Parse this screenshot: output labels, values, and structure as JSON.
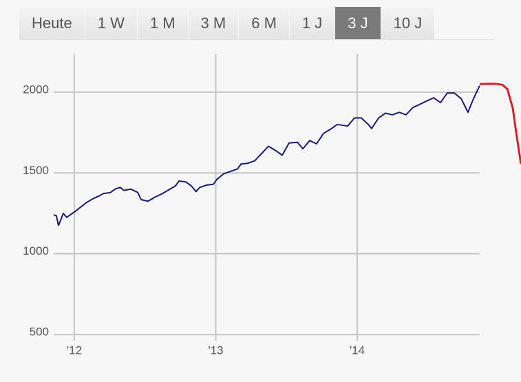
{
  "range_tabs": [
    "Heute",
    "1 W",
    "1 M",
    "3 M",
    "6 M",
    "1 J",
    "3 J",
    "10 J"
  ],
  "selected_tab": 6,
  "chart_data": {
    "type": "line",
    "xlim": [
      2011.854,
      2014.866
    ],
    "ylim": [
      462,
      2238
    ],
    "xticks": [
      {
        "value": 2012,
        "label": "'12"
      },
      {
        "value": 2013,
        "label": "'13"
      },
      {
        "value": 2014,
        "label": "'14"
      }
    ],
    "yticks": [
      500,
      1000,
      1500,
      2000
    ],
    "grid": true,
    "series": [
      {
        "color": "#1a1a78",
        "x": [
          2011.854,
          2011.873,
          2011.888,
          2011.922,
          2011.946,
          2012.01,
          2012.083,
          2012.131,
          2012.18,
          2012.204,
          2012.253,
          2012.292,
          2012.326,
          2012.35,
          2012.399,
          2012.448,
          2012.472,
          2012.521,
          2012.569,
          2012.618,
          2012.667,
          2012.715,
          2012.74,
          2012.788,
          2012.827,
          2012.861,
          2012.886,
          2012.934,
          2012.983,
          2013.007,
          2013.056,
          2013.105,
          2013.153,
          2013.178,
          2013.226,
          2013.275,
          2013.324,
          2013.372,
          2013.421,
          2013.47,
          2013.518,
          2013.577,
          2013.616,
          2013.664,
          2013.713,
          2013.762,
          2013.81,
          2013.859,
          2013.932,
          2013.981,
          2014.029,
          2014.078,
          2014.102,
          2014.151,
          2014.2,
          2014.248,
          2014.297,
          2014.345,
          2014.394,
          2014.443,
          2014.491,
          2014.54,
          2014.589,
          2014.637,
          2014.686,
          2014.735,
          2014.783,
          2014.822,
          2014.866
        ],
        "values": [
          1241,
          1235,
          1175,
          1250,
          1225,
          1265,
          1315,
          1340,
          1360,
          1372,
          1378,
          1402,
          1410,
          1392,
          1400,
          1380,
          1335,
          1325,
          1350,
          1370,
          1395,
          1420,
          1450,
          1445,
          1420,
          1385,
          1410,
          1425,
          1430,
          1460,
          1495,
          1510,
          1525,
          1555,
          1560,
          1575,
          1620,
          1665,
          1640,
          1610,
          1685,
          1690,
          1650,
          1700,
          1680,
          1745,
          1770,
          1800,
          1790,
          1840,
          1840,
          1800,
          1775,
          1840,
          1870,
          1860,
          1875,
          1860,
          1905,
          1925,
          1945,
          1965,
          1935,
          1995,
          1995,
          1960,
          1875,
          1960,
          2040
        ]
      },
      {
        "color": "#d9202a",
        "x": [
          2014.866,
          2014.929,
          2014.978,
          2015.027,
          2015.061,
          2015.1,
          2015.124,
          2015.158
        ],
        "values": [
          2050,
          2052,
          2052,
          2045,
          2020,
          1900,
          1750,
          1555
        ]
      }
    ]
  }
}
